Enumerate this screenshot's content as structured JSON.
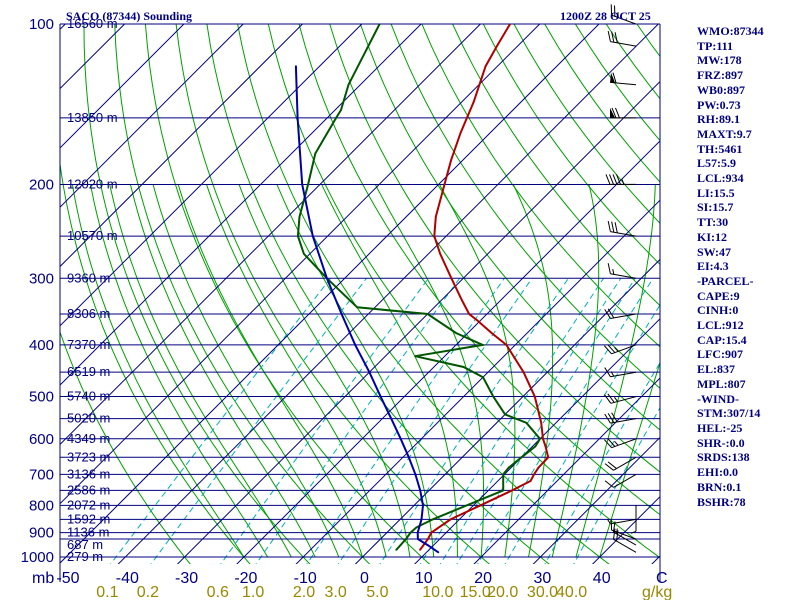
{
  "header": {
    "station": "SACO (87344) Sounding",
    "time": "1200Z 28 OCT 25"
  },
  "indices": [
    "WMO:87344",
    "TP:111",
    "MW:178",
    "FRZ:897",
    "WB0:897",
    "PW:0.73",
    "RH:89.1",
    "MAXT:9.7",
    "TH:5461",
    "L57:5.9",
    "LCL:934",
    "LI:15.5",
    "SI:15.7",
    "TT:30",
    "KI:12",
    "SW:47",
    "EI:4.3",
    "-PARCEL-",
    "CAPE:9",
    "CINH:0",
    "LCL:912",
    "CAP:15.4",
    "LFC:907",
    "EL:837",
    "MPL:807",
    "-WIND-",
    "STM:307/14",
    "HEL:-25",
    "SHR-:0.0",
    "SRDS:138",
    "EHI:0.0",
    "BRN:0.1",
    "BSHR:78"
  ],
  "colors": {
    "isobar": "#00007f",
    "isotherm": "#00007f",
    "dry_adiabat": "#00a000",
    "moist_adiabat": "#00a000",
    "mixing_ratio": "#00b0b0",
    "temperature": "#b00000",
    "dewpoint": "#005500",
    "parcel": "#0000aa",
    "mixing_label": "#998800",
    "wind_barb": "#000000"
  },
  "chart_data": {
    "type": "line",
    "title": "SACO (87344) Sounding",
    "subtitle": "1200Z 28 OCT 25",
    "x_axis": {
      "unit_label": "mb",
      "unit_label_right": "C",
      "ticks": [
        -50,
        -40,
        -30,
        -20,
        -10,
        0,
        10,
        20,
        30,
        40
      ],
      "tick_labels": [
        "-50",
        "-40",
        "-30",
        "-20",
        "-10",
        "0",
        "10",
        "20",
        "30",
        "40"
      ],
      "range": [
        -50,
        50
      ]
    },
    "y_axis": {
      "scale": "log",
      "range": [
        1000,
        100
      ],
      "ticks": [
        100,
        200,
        300,
        400,
        500,
        600,
        700,
        800,
        900,
        1000
      ],
      "tick_labels": [
        "100",
        "200",
        "300",
        "400",
        "500",
        "600",
        "700",
        "800",
        "900",
        "1000"
      ]
    },
    "isobars": [
      1000,
      925,
      900,
      850,
      800,
      750,
      700,
      650,
      600,
      550,
      500,
      450,
      400,
      350,
      300,
      250,
      200,
      150,
      100
    ],
    "heights": [
      {
        "p": 100,
        "label": "16560 m"
      },
      {
        "p": 150,
        "label": "13850 m"
      },
      {
        "p": 200,
        "label": "12020 m"
      },
      {
        "p": 250,
        "label": "10570 m"
      },
      {
        "p": 300,
        "label": "9360 m"
      },
      {
        "p": 350,
        "label": "8306 m"
      },
      {
        "p": 400,
        "label": "7370 m"
      },
      {
        "p": 450,
        "label": "6519 m"
      },
      {
        "p": 500,
        "label": "5740 m"
      },
      {
        "p": 550,
        "label": "5020 m"
      },
      {
        "p": 600,
        "label": "4349 m"
      },
      {
        "p": 650,
        "label": "3723 m"
      },
      {
        "p": 700,
        "label": "3136 m"
      },
      {
        "p": 750,
        "label": "2586 m"
      },
      {
        "p": 800,
        "label": "2072 m"
      },
      {
        "p": 850,
        "label": "1592 m"
      },
      {
        "p": 900,
        "label": "1136 m"
      },
      {
        "p": 950,
        "label": "687 m"
      },
      {
        "p": 1000,
        "label": "279 m"
      }
    ],
    "mixing_ratio": {
      "unit_label": "g/kg",
      "values": [
        0.1,
        0.2,
        0.6,
        1.0,
        2.0,
        3.0,
        5.0,
        10.0,
        15.0,
        20.0,
        30.0,
        40.0
      ],
      "labels": [
        "0.1",
        "0.2",
        "0.6",
        "1.0",
        "2.0",
        "3.0",
        "5.0",
        "10.0",
        "15.0",
        "20.0",
        "30.0",
        "40.0"
      ]
    },
    "series": [
      {
        "key": "temperature",
        "points": [
          [
            970,
            8.5
          ],
          [
            925,
            8.0
          ],
          [
            900,
            7.5
          ],
          [
            850,
            8.5
          ],
          [
            800,
            11.2
          ],
          [
            750,
            14.0
          ],
          [
            720,
            15.5
          ],
          [
            700,
            15.0
          ],
          [
            680,
            14.6
          ],
          [
            650,
            14.5
          ],
          [
            620,
            12.2
          ],
          [
            600,
            10.5
          ],
          [
            560,
            7.5
          ],
          [
            500,
            2.0
          ],
          [
            450,
            -4.0
          ],
          [
            400,
            -11.5
          ],
          [
            380,
            -16.0
          ],
          [
            360,
            -20.5
          ],
          [
            350,
            -23.0
          ],
          [
            330,
            -26.5
          ],
          [
            300,
            -32.0
          ],
          [
            270,
            -38.0
          ],
          [
            250,
            -42.0
          ],
          [
            230,
            -45.0
          ],
          [
            200,
            -49.0
          ],
          [
            180,
            -52.0
          ],
          [
            160,
            -55.0
          ],
          [
            140,
            -58.0
          ],
          [
            120,
            -62.0
          ],
          [
            110,
            -63.5
          ],
          [
            100,
            -65.0
          ]
        ]
      },
      {
        "key": "dewpoint",
        "points": [
          [
            970,
            4.5
          ],
          [
            925,
            4.3
          ],
          [
            900,
            4.0
          ],
          [
            880,
            4.1
          ],
          [
            850,
            5.5
          ],
          [
            800,
            8.9
          ],
          [
            750,
            12.5
          ],
          [
            700,
            9.8
          ],
          [
            680,
            9.6
          ],
          [
            650,
            10.0
          ],
          [
            620,
            10.5
          ],
          [
            600,
            10.0
          ],
          [
            560,
            5.0
          ],
          [
            540,
            0.0
          ],
          [
            500,
            -5.0
          ],
          [
            460,
            -10.0
          ],
          [
            440,
            -15.0
          ],
          [
            420,
            -25.0
          ],
          [
            400,
            -15.5
          ],
          [
            380,
            -22.0
          ],
          [
            350,
            -30.0
          ],
          [
            340,
            -43.0
          ],
          [
            300,
            -53.0
          ],
          [
            270,
            -61.0
          ],
          [
            250,
            -65.0
          ],
          [
            230,
            -68.0
          ],
          [
            200,
            -72.0
          ],
          [
            175,
            -76.0
          ],
          [
            150,
            -78.5
          ],
          [
            145,
            -79.0
          ],
          [
            130,
            -82.0
          ],
          [
            100,
            -87.0
          ]
        ]
      },
      {
        "key": "parcel",
        "points": [
          [
            980,
            12.0
          ],
          [
            950,
            9.0
          ],
          [
            925,
            6.3
          ],
          [
            900,
            5.2
          ],
          [
            850,
            3.6
          ],
          [
            800,
            1.5
          ],
          [
            750,
            -1.5
          ],
          [
            700,
            -5.0
          ],
          [
            650,
            -9.0
          ],
          [
            600,
            -13.5
          ],
          [
            550,
            -18.5
          ],
          [
            500,
            -24.0
          ],
          [
            450,
            -30.0
          ],
          [
            400,
            -37.0
          ],
          [
            350,
            -44.5
          ],
          [
            300,
            -53.0
          ],
          [
            250,
            -62.5
          ],
          [
            200,
            -73.0
          ],
          [
            150,
            -85.0
          ],
          [
            120,
            -94.0
          ]
        ]
      }
    ],
    "wind_barbs": [
      {
        "p": 980,
        "dir": 300,
        "kt": 20
      },
      {
        "p": 950,
        "dir": 300,
        "kt": 15
      },
      {
        "p": 925,
        "dir": 290,
        "kt": 10
      },
      {
        "p": 850,
        "dir": 260,
        "kt": 5
      },
      {
        "p": 800,
        "dir": 180,
        "kt": 5
      },
      {
        "p": 700,
        "dir": 240,
        "kt": 10
      },
      {
        "p": 650,
        "dir": 240,
        "kt": 20
      },
      {
        "p": 600,
        "dir": 250,
        "kt": 25
      },
      {
        "p": 550,
        "dir": 260,
        "kt": 30
      },
      {
        "p": 500,
        "dir": 255,
        "kt": 25
      },
      {
        "p": 450,
        "dir": 260,
        "kt": 15
      },
      {
        "p": 400,
        "dir": 250,
        "kt": 25
      },
      {
        "p": 350,
        "dir": 260,
        "kt": 20
      },
      {
        "p": 300,
        "dir": 280,
        "kt": 15
      },
      {
        "p": 250,
        "dir": 280,
        "kt": 30
      },
      {
        "p": 200,
        "dir": 270,
        "kt": 45
      },
      {
        "p": 150,
        "dir": 270,
        "kt": 70
      },
      {
        "p": 130,
        "dir": 275,
        "kt": 60
      },
      {
        "p": 110,
        "dir": 280,
        "kt": 30
      },
      {
        "p": 100,
        "dir": 290,
        "kt": 25
      }
    ]
  }
}
